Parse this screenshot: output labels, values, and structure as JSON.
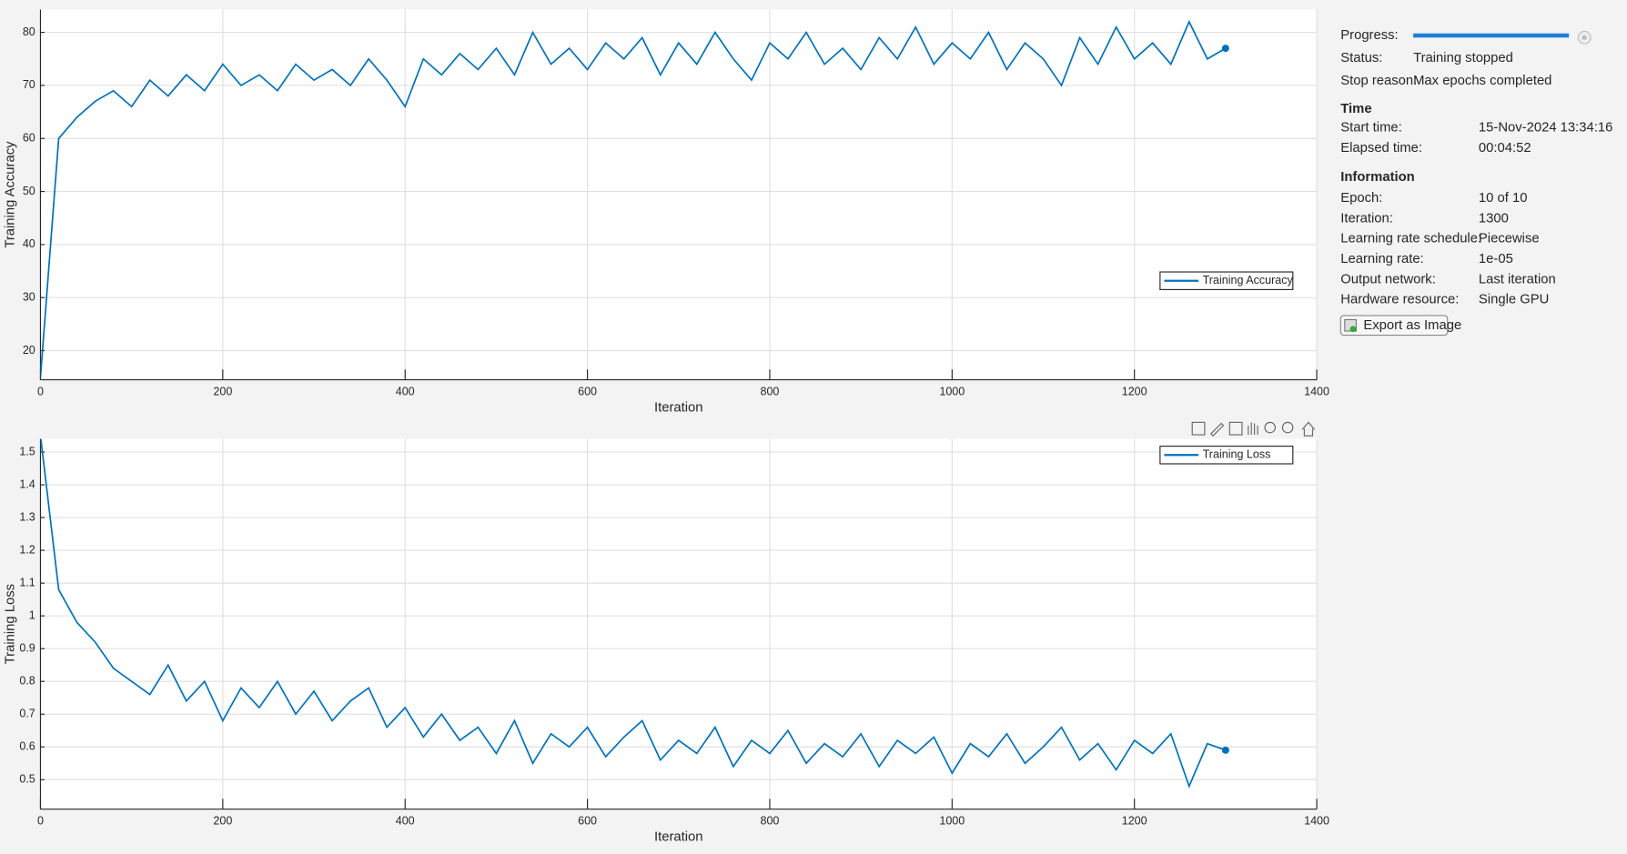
{
  "chart_data": [
    {
      "type": "line",
      "xlabel": "Iteration",
      "ylabel": "Training Accuracy",
      "x": [
        0,
        20,
        40,
        60,
        80,
        100,
        120,
        140,
        160,
        180,
        200,
        220,
        240,
        260,
        280,
        300,
        320,
        340,
        360,
        380,
        400,
        420,
        440,
        460,
        480,
        500,
        520,
        540,
        560,
        580,
        600,
        620,
        640,
        660,
        680,
        700,
        720,
        740,
        760,
        780,
        800,
        820,
        840,
        860,
        880,
        900,
        920,
        940,
        960,
        980,
        1000,
        1020,
        1040,
        1060,
        1080,
        1100,
        1120,
        1140,
        1160,
        1180,
        1200,
        1220,
        1240,
        1260,
        1280,
        1300
      ],
      "series": [
        {
          "name": "Training Accuracy",
          "color": "#0072bd",
          "values": [
            15,
            60,
            64,
            67,
            69,
            66,
            71,
            68,
            72,
            69,
            74,
            70,
            72,
            69,
            74,
            71,
            73,
            70,
            75,
            71,
            66,
            75,
            72,
            76,
            73,
            77,
            72,
            80,
            74,
            77,
            73,
            78,
            75,
            79,
            72,
            78,
            74,
            80,
            75,
            71,
            78,
            75,
            80,
            74,
            77,
            73,
            79,
            75,
            81,
            74,
            78,
            75,
            80,
            73,
            78,
            75,
            70,
            79,
            74,
            81,
            75,
            78,
            74,
            82,
            75,
            77
          ]
        }
      ],
      "xlim": [
        0,
        1400
      ],
      "ylim": [
        14.5,
        84.3
      ],
      "xticks": [
        0,
        200,
        400,
        600,
        800,
        1000,
        1200,
        1400
      ],
      "yticks": [
        20,
        30,
        40,
        50,
        60,
        70,
        80
      ],
      "grid": true,
      "legend": "lower right"
    },
    {
      "type": "line",
      "xlabel": "Iteration",
      "ylabel": "Training Loss",
      "x": [
        0,
        20,
        40,
        60,
        80,
        100,
        120,
        140,
        160,
        180,
        200,
        220,
        240,
        260,
        280,
        300,
        320,
        340,
        360,
        380,
        400,
        420,
        440,
        460,
        480,
        500,
        520,
        540,
        560,
        580,
        600,
        620,
        640,
        660,
        680,
        700,
        720,
        740,
        760,
        780,
        800,
        820,
        840,
        860,
        880,
        900,
        920,
        940,
        960,
        980,
        1000,
        1020,
        1040,
        1060,
        1080,
        1100,
        1120,
        1140,
        1160,
        1180,
        1200,
        1220,
        1240,
        1260,
        1280,
        1300
      ],
      "series": [
        {
          "name": "Training Loss",
          "color": "#0072bd",
          "values": [
            1.55,
            1.08,
            0.98,
            0.92,
            0.84,
            0.8,
            0.76,
            0.85,
            0.74,
            0.8,
            0.68,
            0.78,
            0.72,
            0.8,
            0.7,
            0.77,
            0.68,
            0.74,
            0.78,
            0.66,
            0.72,
            0.63,
            0.7,
            0.62,
            0.66,
            0.58,
            0.68,
            0.55,
            0.64,
            0.6,
            0.66,
            0.57,
            0.63,
            0.68,
            0.56,
            0.62,
            0.58,
            0.66,
            0.54,
            0.62,
            0.58,
            0.65,
            0.55,
            0.61,
            0.57,
            0.64,
            0.54,
            0.62,
            0.58,
            0.63,
            0.52,
            0.61,
            0.57,
            0.64,
            0.55,
            0.6,
            0.66,
            0.56,
            0.61,
            0.53,
            0.62,
            0.58,
            0.64,
            0.48,
            0.61,
            0.59
          ]
        }
      ],
      "xlim": [
        0,
        1400
      ],
      "ylim": [
        0.41,
        1.54
      ],
      "xticks": [
        0,
        200,
        400,
        600,
        800,
        1000,
        1200,
        1400
      ],
      "yticks": [
        0.5,
        0.6,
        0.7,
        0.8,
        0.9,
        1,
        1.1,
        1.2,
        1.3,
        1.4,
        1.5
      ],
      "grid": true,
      "legend": "upper right"
    }
  ],
  "panel": {
    "top": [
      {
        "label": "Progress:"
      },
      {
        "label": "Status:",
        "value": "Training stopped"
      },
      {
        "label": "Stop reason:",
        "value": "Max epochs completed"
      }
    ],
    "time": {
      "heading": "Time",
      "rows": [
        {
          "label": "Start time:",
          "value": "15-Nov-2024 13:34:16"
        },
        {
          "label": "Elapsed time:",
          "value": "00:04:52"
        }
      ]
    },
    "information": {
      "heading": "Information",
      "rows": [
        {
          "label": "Epoch:",
          "value": "10 of 10"
        },
        {
          "label": "Iteration:",
          "value": "1300"
        },
        {
          "label": "Learning rate schedule:",
          "value": "Piecewise"
        },
        {
          "label": "Learning rate:",
          "value": "1e-05"
        },
        {
          "label": "Output network:",
          "value": "Last iteration"
        },
        {
          "label": "Hardware resource:",
          "value": "Single GPU"
        }
      ]
    },
    "export_button": "Export as Image"
  }
}
